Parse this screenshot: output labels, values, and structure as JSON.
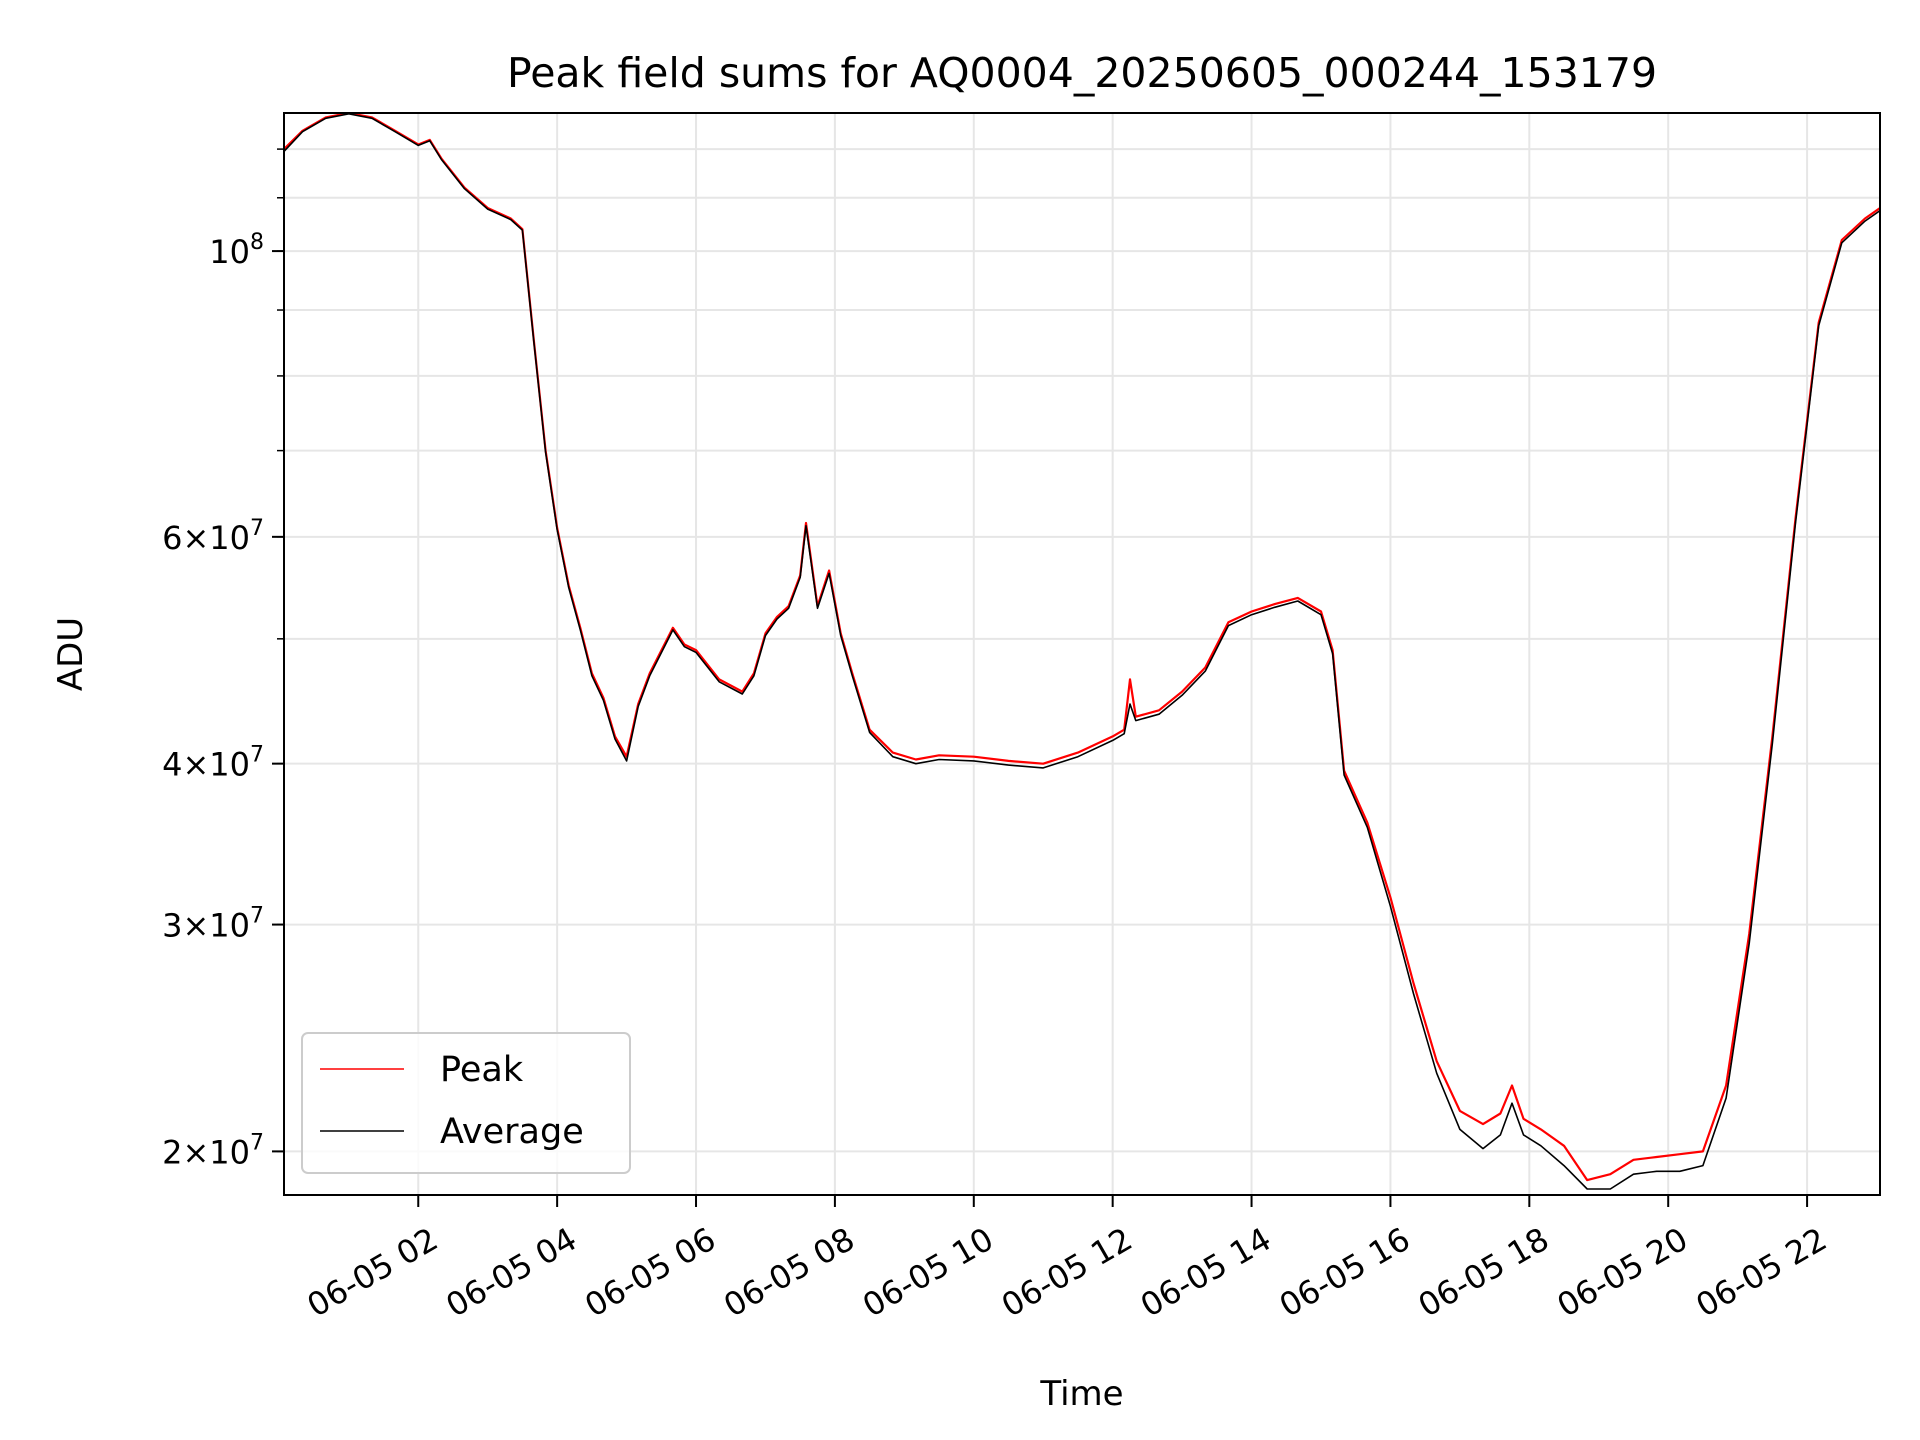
{
  "chart_data": {
    "type": "line",
    "title": "Peak field sums for AQ0004_20250605_000244_153179",
    "xlabel": "Time",
    "ylabel": "ADU",
    "yscale": "log",
    "grid": true,
    "legend_position": "lower left",
    "colors": {
      "Peak": "#ff0000",
      "Average": "#000000"
    },
    "x_ticks": [
      "06-05 02",
      "06-05 04",
      "06-05 06",
      "06-05 08",
      "06-05 10",
      "06-05 12",
      "06-05 14",
      "06-05 16",
      "06-05 18",
      "06-05 20",
      "06-05 22"
    ],
    "y_ticks": [
      {
        "value": 20000000,
        "base": "2",
        "exp": "7"
      },
      {
        "value": 30000000,
        "base": "3",
        "exp": "7"
      },
      {
        "value": 40000000,
        "base": "4",
        "exp": "7"
      },
      {
        "value": 60000000,
        "base": "6",
        "exp": "7"
      },
      {
        "value": 100000000,
        "base": "10",
        "exp": "8"
      }
    ],
    "xlim": [
      "06-05 00:04",
      "06-05 23:03"
    ],
    "ylim": [
      18500000,
      128000000
    ],
    "series": [
      {
        "name": "Peak",
        "x": [
          "06-05 00:04",
          "06-05 00:20",
          "06-05 00:40",
          "06-05 01:00",
          "06-05 01:20",
          "06-05 01:40",
          "06-05 02:00",
          "06-05 02:10",
          "06-05 02:20",
          "06-05 02:40",
          "06-05 03:00",
          "06-05 03:20",
          "06-05 03:30",
          "06-05 03:40",
          "06-05 03:50",
          "06-05 04:00",
          "06-05 04:10",
          "06-05 04:20",
          "06-05 04:30",
          "06-05 04:40",
          "06-05 04:50",
          "06-05 05:00",
          "06-05 05:10",
          "06-05 05:20",
          "06-05 05:40",
          "06-05 05:50",
          "06-05 06:00",
          "06-05 06:20",
          "06-05 06:40",
          "06-05 06:50",
          "06-05 07:00",
          "06-05 07:10",
          "06-05 07:20",
          "06-05 07:30",
          "06-05 07:35",
          "06-05 07:45",
          "06-05 07:55",
          "06-05 08:05",
          "06-05 08:15",
          "06-05 08:30",
          "06-05 08:50",
          "06-05 09:10",
          "06-05 09:30",
          "06-05 10:00",
          "06-05 10:30",
          "06-05 11:00",
          "06-05 11:30",
          "06-05 12:00",
          "06-05 12:10",
          "06-05 12:15",
          "06-05 12:20",
          "06-05 12:40",
          "06-05 13:00",
          "06-05 13:20",
          "06-05 13:40",
          "06-05 14:00",
          "06-05 14:20",
          "06-05 14:40",
          "06-05 15:00",
          "06-05 15:10",
          "06-05 15:20",
          "06-05 15:40",
          "06-05 16:00",
          "06-05 16:20",
          "06-05 16:40",
          "06-05 17:00",
          "06-05 17:20",
          "06-05 17:35",
          "06-05 17:45",
          "06-05 17:55",
          "06-05 18:10",
          "06-05 18:30",
          "06-05 18:50",
          "06-05 19:10",
          "06-05 19:30",
          "06-05 19:50",
          "06-05 20:10",
          "06-05 20:30",
          "06-05 20:50",
          "06-05 21:10",
          "06-05 21:30",
          "06-05 21:50",
          "06-05 22:10",
          "06-05 22:30",
          "06-05 22:50",
          "06-05 23:03"
        ],
        "y": [
          120000000,
          124000000,
          127000000,
          128000000,
          127000000,
          124000000,
          121000000,
          122000000,
          118000000,
          112000000,
          108000000,
          106000000,
          104000000,
          85000000,
          70000000,
          61000000,
          55000000,
          51000000,
          47000000,
          45000000,
          42000000,
          40500000,
          44500000,
          47000000,
          51000000,
          49500000,
          49000000,
          46500000,
          45500000,
          47000000,
          50500000,
          52000000,
          53000000,
          56000000,
          61500000,
          53000000,
          56500000,
          50500000,
          47000000,
          42500000,
          40800000,
          40300000,
          40600000,
          40500000,
          40200000,
          40000000,
          40800000,
          42000000,
          42500000,
          46500000,
          43500000,
          44000000,
          45500000,
          47500000,
          51500000,
          52500000,
          53200000,
          53800000,
          52500000,
          49000000,
          39500000,
          36000000,
          31500000,
          27000000,
          23500000,
          21500000,
          21000000,
          21400000,
          22500000,
          21200000,
          20800000,
          20200000,
          19000000,
          19200000,
          19700000,
          19800000,
          19900000,
          20000000,
          22500000,
          29500000,
          42000000,
          62000000,
          88000000,
          102000000,
          106000000,
          108000000
        ]
      },
      {
        "name": "Average",
        "x": [
          "06-05 00:04",
          "06-05 00:20",
          "06-05 00:40",
          "06-05 01:00",
          "06-05 01:20",
          "06-05 01:40",
          "06-05 02:00",
          "06-05 02:10",
          "06-05 02:20",
          "06-05 02:40",
          "06-05 03:00",
          "06-05 03:20",
          "06-05 03:30",
          "06-05 03:40",
          "06-05 03:50",
          "06-05 04:00",
          "06-05 04:10",
          "06-05 04:20",
          "06-05 04:30",
          "06-05 04:40",
          "06-05 04:50",
          "06-05 05:00",
          "06-05 05:10",
          "06-05 05:20",
          "06-05 05:40",
          "06-05 05:50",
          "06-05 06:00",
          "06-05 06:20",
          "06-05 06:40",
          "06-05 06:50",
          "06-05 07:00",
          "06-05 07:10",
          "06-05 07:20",
          "06-05 07:30",
          "06-05 07:35",
          "06-05 07:45",
          "06-05 07:55",
          "06-05 08:05",
          "06-05 08:15",
          "06-05 08:30",
          "06-05 08:50",
          "06-05 09:10",
          "06-05 09:30",
          "06-05 10:00",
          "06-05 10:30",
          "06-05 11:00",
          "06-05 11:30",
          "06-05 12:00",
          "06-05 12:10",
          "06-05 12:15",
          "06-05 12:20",
          "06-05 12:40",
          "06-05 13:00",
          "06-05 13:20",
          "06-05 13:40",
          "06-05 14:00",
          "06-05 14:20",
          "06-05 14:40",
          "06-05 15:00",
          "06-05 15:10",
          "06-05 15:20",
          "06-05 15:40",
          "06-05 16:00",
          "06-05 16:20",
          "06-05 16:40",
          "06-05 17:00",
          "06-05 17:20",
          "06-05 17:35",
          "06-05 17:45",
          "06-05 17:55",
          "06-05 18:10",
          "06-05 18:30",
          "06-05 18:50",
          "06-05 19:10",
          "06-05 19:30",
          "06-05 19:50",
          "06-05 20:10",
          "06-05 20:30",
          "06-05 20:50",
          "06-05 21:10",
          "06-05 21:30",
          "06-05 21:50",
          "06-05 22:10",
          "06-05 22:30",
          "06-05 22:50",
          "06-05 23:03"
        ],
        "y": [
          119500000,
          123800000,
          126800000,
          127800000,
          126800000,
          123800000,
          120800000,
          121800000,
          117800000,
          111800000,
          107800000,
          105800000,
          103800000,
          84800000,
          69800000,
          60800000,
          54800000,
          50800000,
          46800000,
          44800000,
          41800000,
          40200000,
          44300000,
          46800000,
          50800000,
          49300000,
          48800000,
          46300000,
          45300000,
          46800000,
          50300000,
          51800000,
          52800000,
          55800000,
          61200000,
          52800000,
          56200000,
          50300000,
          46800000,
          42300000,
          40500000,
          40000000,
          40300000,
          40200000,
          39900000,
          39700000,
          40500000,
          41700000,
          42200000,
          44500000,
          43200000,
          43700000,
          45200000,
          47200000,
          51200000,
          52200000,
          52900000,
          53500000,
          52200000,
          48700000,
          39200000,
          35700000,
          31000000,
          26500000,
          23000000,
          20800000,
          20100000,
          20600000,
          21800000,
          20600000,
          20200000,
          19500000,
          18700000,
          18700000,
          19200000,
          19300000,
          19300000,
          19500000,
          22000000,
          29000000,
          41500000,
          61500000,
          87500000,
          101500000,
          105500000,
          107500000
        ]
      }
    ]
  }
}
